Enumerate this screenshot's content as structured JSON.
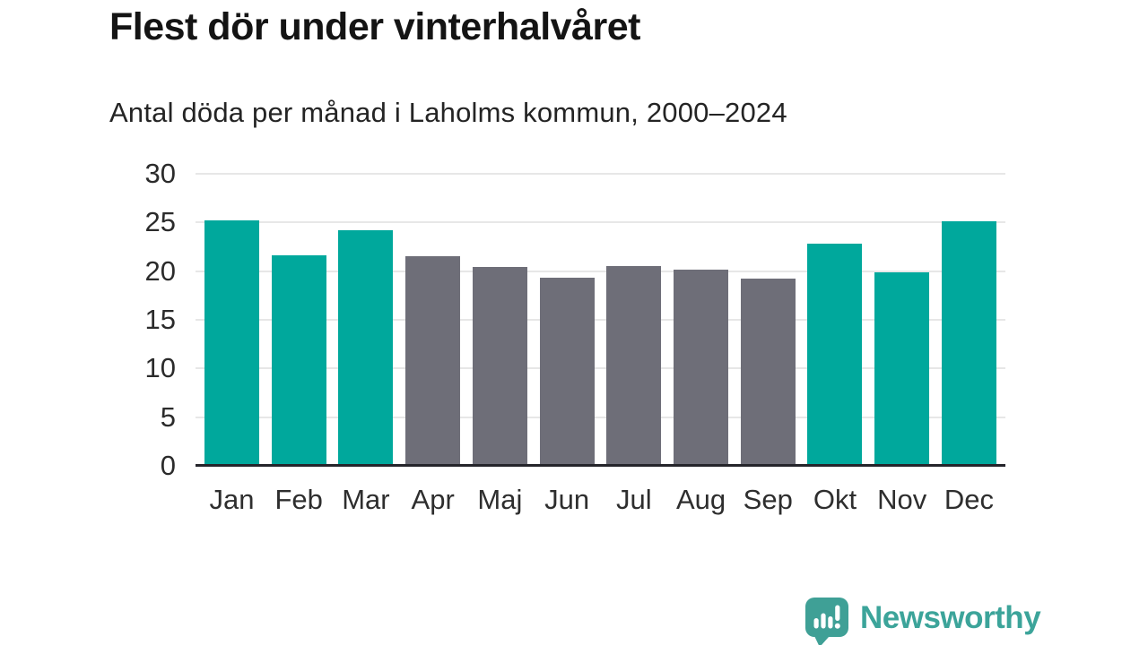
{
  "header": {
    "title": "Flest dör under vinterhalvåret",
    "subtitle": "Antal döda per månad i Laholms kommun, 2000–2024"
  },
  "chart_data": {
    "type": "bar",
    "title": "Flest dör under vinterhalvåret",
    "subtitle": "Antal döda per månad i Laholms kommun, 2000–2024",
    "categories": [
      "Jan",
      "Feb",
      "Mar",
      "Apr",
      "Maj",
      "Jun",
      "Jul",
      "Aug",
      "Sep",
      "Okt",
      "Nov",
      "Dec"
    ],
    "values": [
      25.2,
      21.6,
      24.2,
      21.5,
      20.4,
      19.3,
      20.5,
      20.2,
      19.2,
      22.8,
      19.9,
      25.1
    ],
    "groups": [
      "winter",
      "winter",
      "winter",
      "summer",
      "summer",
      "summer",
      "summer",
      "summer",
      "summer",
      "winter",
      "winter",
      "winter"
    ],
    "colors": {
      "winter": "#00a89c",
      "summer": "#6e6e78"
    },
    "xlabel": "",
    "ylabel": "",
    "ylim": [
      0,
      30
    ],
    "yticks": [
      0,
      5,
      10,
      15,
      20,
      25,
      30
    ],
    "grid": "horizontal",
    "legend": "none"
  },
  "footer": {
    "brand": "Newsworthy",
    "brand_color": "#3ca49a",
    "icon": "newsworthy-speech-bubble-chart-icon"
  }
}
